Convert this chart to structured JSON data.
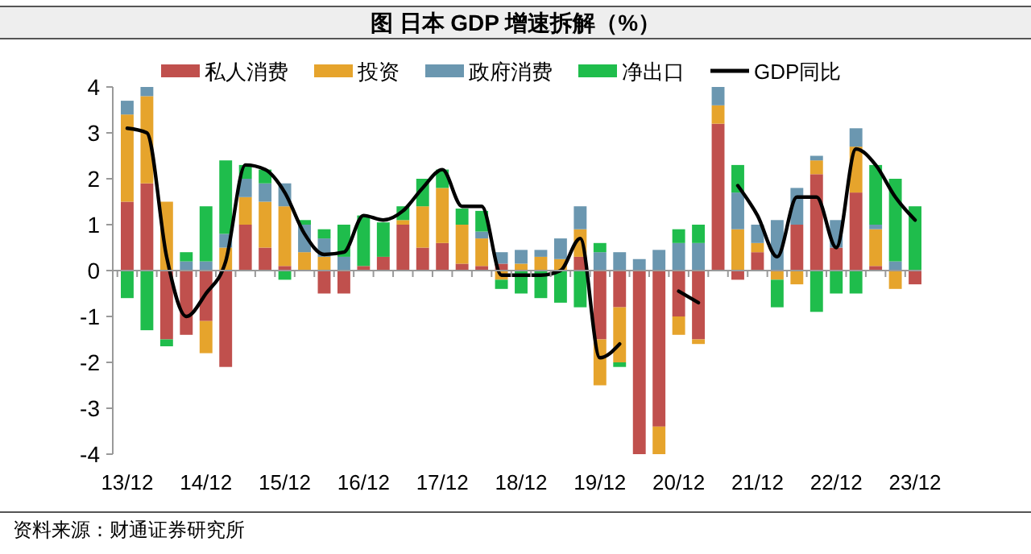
{
  "chart_data": {
    "type": "bar",
    "title": "图  日本 GDP 增速拆解（%）",
    "stacked": true,
    "legend": "top",
    "categories": [
      "13/12",
      null,
      null,
      null,
      "14/12",
      null,
      null,
      null,
      "15/12",
      null,
      null,
      null,
      "16/12",
      null,
      null,
      null,
      "17/12",
      null,
      null,
      null,
      "18/12",
      null,
      null,
      null,
      "19/12",
      null,
      null,
      null,
      "20/12",
      null,
      null,
      null,
      "21/12",
      null,
      null,
      null,
      "22/12",
      null,
      null,
      null,
      "23/12"
    ],
    "ylim": [
      -4,
      4
    ],
    "yticks": [
      -4,
      -3,
      -2,
      -1,
      0,
      1,
      2,
      3,
      4
    ],
    "series": [
      {
        "name": "私人消费",
        "color": "#c0504d",
        "values": [
          1.5,
          1.9,
          -1.5,
          -1.4,
          -1.1,
          -2.1,
          1.0,
          0.5,
          0.1,
          0,
          -0.5,
          -0.5,
          0.1,
          0.3,
          1.0,
          0.5,
          0.6,
          0.15,
          0.1,
          0.15,
          0,
          0,
          0,
          0.3,
          -1.5,
          -0.8,
          -4,
          -3.4,
          -1.0,
          -1.5,
          3.2,
          -0.2,
          0.4,
          0,
          1.0,
          2.1,
          0.5,
          1.7,
          0.1,
          0,
          -0.3
        ]
      },
      {
        "name": "投资",
        "color": "#e6a42c",
        "values": [
          1.9,
          1.9,
          1.5,
          0,
          -0.7,
          0.5,
          0.6,
          1.0,
          1.3,
          0.4,
          0.3,
          0,
          0,
          0,
          0.1,
          0.9,
          1.2,
          0.85,
          0.6,
          -0.2,
          0.15,
          0.3,
          0.25,
          0.6,
          -1.0,
          -1.2,
          0,
          -0.6,
          -0.4,
          -0.1,
          0.4,
          0.9,
          0.2,
          -0.2,
          -0.3,
          0.3,
          0,
          1.0,
          0.8,
          -0.4,
          0
        ]
      },
      {
        "name": "政府消费",
        "color": "#6b97b0",
        "values": [
          0.3,
          0.2,
          0,
          0.2,
          0.2,
          0.3,
          0.4,
          0.4,
          0.5,
          0.6,
          0.4,
          0.3,
          0,
          0,
          0,
          0,
          0,
          0,
          0.15,
          0.25,
          0.3,
          0.15,
          0.45,
          0.5,
          0.4,
          0.4,
          0.25,
          0.45,
          0.6,
          0.6,
          0.4,
          0.8,
          0.4,
          1.1,
          0.8,
          0.1,
          0.6,
          0.4,
          0.1,
          0.2,
          0
        ]
      },
      {
        "name": "净出口",
        "color": "#1fbd4c",
        "values": [
          -0.6,
          -1.3,
          -0.15,
          0.2,
          1.2,
          1.6,
          0.3,
          0.3,
          -0.2,
          0.1,
          0.2,
          0.7,
          1.1,
          0.75,
          0.3,
          0.6,
          0.4,
          0.35,
          0.45,
          -0.2,
          -0.5,
          -0.6,
          -0.7,
          -0.8,
          0.2,
          -0.1,
          0,
          0,
          0.3,
          0.4,
          0,
          0.6,
          0,
          -0.6,
          0,
          -0.9,
          -0.5,
          -0.5,
          1.3,
          1.8,
          1.4
        ]
      },
      {
        "name": "GDP同比",
        "type": "line",
        "color": "#000000",
        "values": [
          3.1,
          3.0,
          0.3,
          -1.0,
          -0.5,
          0.2,
          2.3,
          2.2,
          1.7,
          0.8,
          0.35,
          0.4,
          1.2,
          1.1,
          1.3,
          1.8,
          2.2,
          1.4,
          1.4,
          -0.1,
          -0.1,
          -0.1,
          0,
          0.7,
          -1.9,
          -1.6,
          null,
          null,
          -0.45,
          -0.7,
          null,
          1.85,
          1.2,
          0.3,
          1.6,
          1.6,
          0.5,
          2.65,
          2.3,
          1.6,
          1.1
        ]
      }
    ],
    "annotations": [
      "资料来源：财通证券研究所"
    ]
  }
}
